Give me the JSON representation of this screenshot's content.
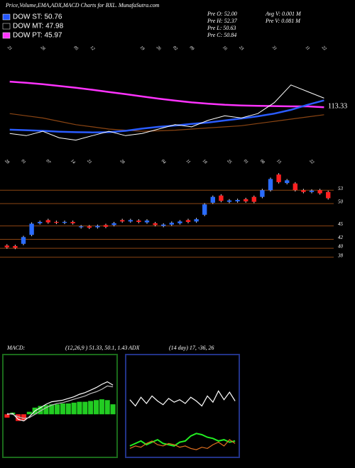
{
  "header": {
    "title": "Price,Volume,EMA,ADX,MACD Charts for BXL. MunafaSutra.com",
    "legend": [
      "DOW ST: 50.76",
      "DOW MT: 47.98",
      "DOW PT: 45.97"
    ],
    "legend_colors": [
      "#2255ff",
      "#000000",
      "#ff33ff"
    ],
    "stats": [
      "Pre O: 52.00",
      "Pre H: 52.37",
      "Pre L: 50.63",
      "Pre C: 50.84"
    ],
    "volume": [
      "Avg V: 0.001 M",
      "Pre V: 0.081 M"
    ]
  },
  "chart_data": [
    {
      "type": "line",
      "categories": [
        "21",
        null,
        "28",
        null,
        "05",
        "12",
        null,
        null,
        "19",
        "26",
        "02",
        "09",
        null,
        "16",
        "23",
        null,
        "31",
        null,
        "11",
        "22"
      ],
      "ylim": [
        95,
        140
      ],
      "last_label": "113.33",
      "series": [
        {
          "color": "#ff33ff",
          "width": 2.5,
          "values": [
            125.5,
            125,
            124.3,
            123.5,
            122.7,
            121.8,
            120.8,
            119.8,
            118.8,
            117.8,
            116.9,
            116.1,
            115.5,
            115,
            114.7,
            114.5,
            114.4,
            114.3,
            114.3,
            113.9
          ]
        },
        {
          "color": "#8b4513",
          "width": 1.2,
          "values": [
            111,
            110,
            109,
            107.5,
            106,
            105,
            104,
            103.5,
            103,
            103.2,
            103.5,
            104,
            104.5,
            105,
            105.5,
            106.5,
            107.5,
            108.5,
            109.5,
            110.5
          ]
        },
        {
          "color": "#2a5cff",
          "width": 2.5,
          "values": [
            103.7,
            103.5,
            103.2,
            102.8,
            102.6,
            102.5,
            102.6,
            103.2,
            104.2,
            105.0,
            105.6,
            106.3,
            107.0,
            107.9,
            108.8,
            109.8,
            111.0,
            112.7,
            115.0,
            117.0
          ]
        },
        {
          "color": "#ffffff",
          "width": 1,
          "values": [
            102,
            101,
            103,
            100,
            99,
            101,
            103,
            101,
            102,
            104,
            106,
            105,
            108,
            110,
            109,
            111,
            116,
            124,
            121,
            118
          ]
        }
      ]
    },
    {
      "type": "candlestick",
      "categories": [
        "28",
        null,
        "01",
        null,
        null,
        "07",
        null,
        null,
        "14",
        null,
        "21",
        null,
        null,
        null,
        "28",
        null,
        null,
        null,
        null,
        "04",
        null,
        null,
        "11",
        null,
        "18",
        null,
        null,
        "25",
        null,
        "01",
        null,
        "08",
        null,
        "15",
        null,
        null,
        null,
        "22",
        null,
        null
      ],
      "open": [
        40.6,
        40.5,
        41.0,
        43.0,
        45.6,
        46.3,
        45.9,
        45.7,
        45.9,
        44.7,
        44.9,
        44.7,
        45.2,
        45.2,
        46.3,
        46.0,
        46.2,
        45.8,
        45.6,
        45.0,
        45.3,
        45.6,
        46.3,
        46.0,
        47.5,
        50.2,
        51.8,
        50.4,
        50.5,
        51.0,
        51.5,
        51.5,
        53.0,
        56.5,
        54.6,
        54.5,
        53.0,
        52.6,
        53.0,
        52.6
      ],
      "high": [
        40.9,
        40.8,
        42.8,
        45.8,
        46.2,
        46.6,
        46.2,
        46.2,
        46.2,
        45.2,
        45.2,
        45.3,
        45.5,
        45.9,
        46.6,
        46.6,
        46.5,
        46.5,
        45.9,
        45.6,
        46.0,
        46.3,
        46.6,
        46.8,
        50.1,
        51.8,
        52.1,
        51.0,
        51.1,
        51.3,
        51.8,
        53.3,
        55.8,
        56.8,
        55.5,
        54.8,
        53.3,
        53.2,
        53.3,
        52.9
      ],
      "low": [
        39.9,
        39.8,
        40.7,
        42.7,
        45.3,
        45.5,
        45.4,
        45.4,
        45.3,
        44.4,
        44.3,
        44.4,
        44.5,
        44.9,
        45.7,
        45.7,
        45.6,
        45.5,
        44.9,
        44.7,
        45.0,
        45.3,
        45.6,
        45.7,
        47.2,
        49.9,
        50.3,
        50.1,
        50.2,
        50.2,
        50.1,
        51.2,
        52.7,
        54.5,
        54.3,
        52.7,
        52.3,
        52.3,
        52.0,
        50.9
      ],
      "close": [
        40.2,
        40.1,
        42.5,
        45.5,
        45.9,
        45.8,
        45.7,
        45.9,
        45.6,
        44.9,
        44.6,
        45.0,
        44.8,
        45.6,
        46.0,
        46.3,
        45.9,
        46.2,
        45.2,
        45.3,
        45.7,
        46.0,
        45.9,
        46.5,
        49.8,
        51.5,
        50.6,
        50.7,
        50.8,
        50.5,
        50.4,
        53.0,
        55.5,
        54.8,
        55.2,
        53.0,
        52.6,
        52.9,
        52.3,
        51.2
      ],
      "up_color": "#2a6cff",
      "down_color": "#ff2020",
      "ylim": [
        37,
        57
      ],
      "yticks": [
        53,
        50,
        45,
        42,
        40,
        38
      ],
      "grid": true,
      "grid_color": "#8b4513"
    },
    {
      "type": "macd",
      "title": "MACD:",
      "params": "(12,26,9 ) 51.33, 50.1, 1.43",
      "ylim": [
        -5,
        7
      ],
      "histogram": {
        "up_color": "#22cc22",
        "down_color": "#ff2020",
        "values": [
          -0.4,
          0.2,
          -0.8,
          -0.7,
          0.3,
          0.8,
          1.0,
          1.1,
          1.2,
          1.2,
          1.3,
          1.3,
          1.4,
          1.5,
          1.5,
          1.6,
          1.7,
          1.8,
          1.7,
          1.2
        ]
      },
      "series": [
        {
          "color": "#ffffff",
          "values": [
            0,
            0.1,
            -0.6,
            -0.8,
            -0.3,
            0.4,
            0.8,
            1.2,
            1.5,
            1.6,
            1.7,
            1.9,
            2.1,
            2.4,
            2.6,
            2.9,
            3.2,
            3.6,
            3.9,
            3.5
          ]
        },
        {
          "color": "#bbbbbb",
          "values": [
            0.1,
            0,
            -0.3,
            -0.5,
            -0.4,
            0,
            0.4,
            0.8,
            1.1,
            1.3,
            1.4,
            1.6,
            1.8,
            2.0,
            2.2,
            2.5,
            2.7,
            3.0,
            3.4,
            3.3
          ]
        }
      ]
    },
    {
      "type": "adx",
      "title": "ADX",
      "params": "(14 day) 17, -36, 26",
      "ylim": [
        0,
        80
      ],
      "series": [
        {
          "color": "#ffffff",
          "values": [
            45,
            40,
            47,
            42,
            48,
            44,
            41,
            46,
            43,
            45,
            42,
            47,
            44,
            40,
            48,
            43,
            52,
            45,
            51,
            44
          ]
        },
        {
          "color": "#22ee22",
          "values": [
            8,
            10,
            12,
            9,
            11,
            13,
            10,
            9,
            8,
            11,
            12,
            16,
            18,
            17,
            15,
            14,
            12,
            13,
            11,
            12
          ]
        },
        {
          "color": "#e07020",
          "values": [
            6,
            8,
            7,
            10,
            12,
            9,
            8,
            10,
            9,
            7,
            8,
            6,
            5,
            7,
            6,
            9,
            11,
            8,
            13,
            10
          ]
        }
      ]
    }
  ]
}
